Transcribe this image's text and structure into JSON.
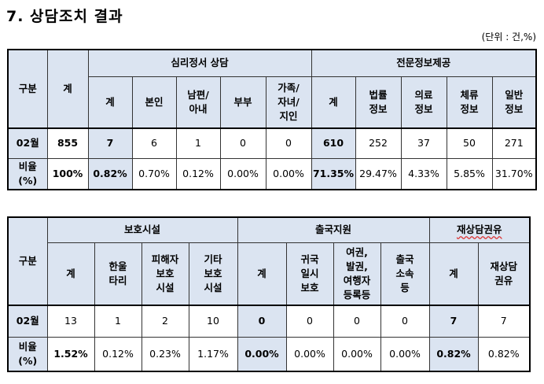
{
  "title": "7. 상담조치 결과",
  "unit": "(단위 : 건,%)",
  "table1": {
    "col_gubun": "구분",
    "col_total": "계",
    "group1": "심리정서 상담",
    "group2": "전문정보제공",
    "sub": [
      "계",
      "본인",
      "남편/\n아내",
      "부부",
      "가족/\n자녀/\n지인",
      "계",
      "법률\n정보",
      "의료\n정보",
      "체류\n정보",
      "일반\n정보"
    ],
    "row1_label": "02월",
    "row1": [
      "855",
      "7",
      "6",
      "1",
      "0",
      "0",
      "610",
      "252",
      "37",
      "50",
      "271"
    ],
    "row2_label": "비율\n(%)",
    "row2": [
      "100%",
      "0.82%",
      "0.70%",
      "0.12%",
      "0.00%",
      "0.00%",
      "71.35%",
      "29.47%",
      "4.33%",
      "5.85%",
      "31.70%"
    ]
  },
  "table2": {
    "col_gubun": "구분",
    "group1": "보호시설",
    "group2": "출국지원",
    "group3": "재상담권유",
    "sub": [
      "계",
      "한울\n타리",
      "피해자\n보호\n시설",
      "기타\n보호\n시설",
      "계",
      "귀국\n일시\n보호",
      "여권,\n발권,\n여행자\n등록등",
      "출국\n소속\n등",
      "계",
      "재상담\n권유"
    ],
    "row1_label": "02월",
    "row1": [
      "13",
      "1",
      "2",
      "10",
      "0",
      "0",
      "0",
      "0",
      "7",
      "7"
    ],
    "row2_label": "비율\n(%)",
    "row2": [
      "1.52%",
      "0.12%",
      "0.23%",
      "1.17%",
      "0.00%",
      "0.00%",
      "0.00%",
      "0.00%",
      "0.82%",
      "0.82%"
    ]
  }
}
